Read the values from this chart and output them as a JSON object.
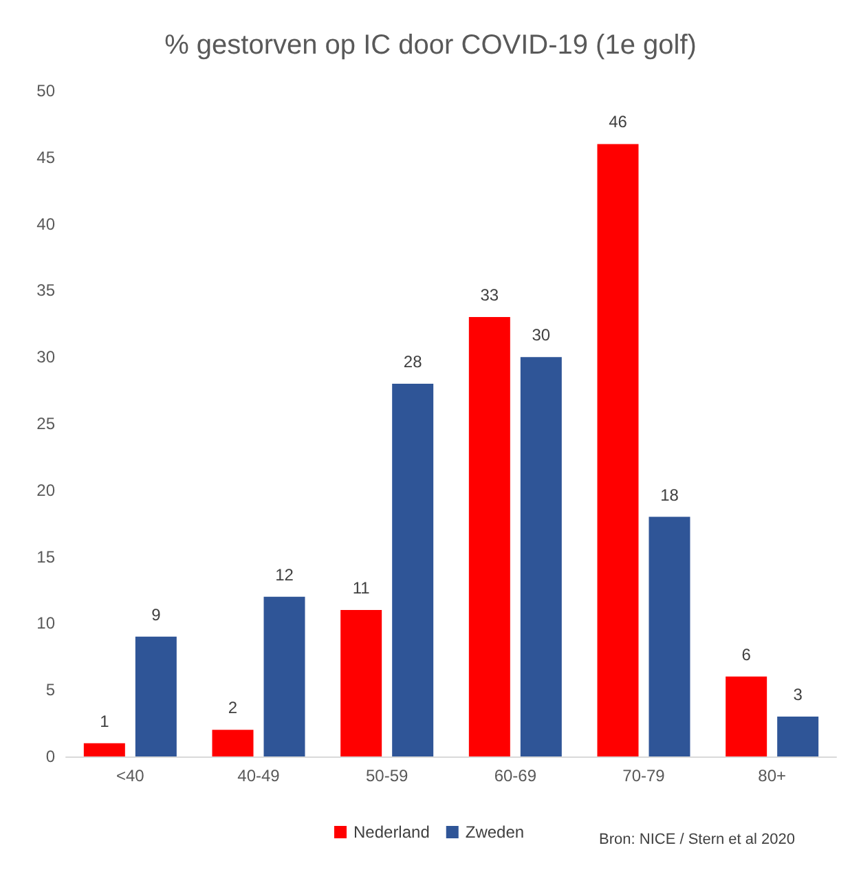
{
  "chart_data": {
    "type": "bar",
    "title": "% gestorven op IC door COVID-19 (1e golf)",
    "categories": [
      "<40",
      "40-49",
      "50-59",
      "60-69",
      "70-79",
      "80+"
    ],
    "series": [
      {
        "name": "Nederland",
        "color": "#ff0000",
        "values": [
          1,
          2,
          11,
          33,
          46,
          6
        ]
      },
      {
        "name": "Zweden",
        "color": "#2f5597",
        "values": [
          9,
          12,
          28,
          30,
          18,
          3
        ]
      }
    ],
    "ylim": [
      0,
      50
    ],
    "yticks": [
      0,
      5,
      10,
      15,
      20,
      25,
      30,
      35,
      40,
      45,
      50
    ],
    "grid": false,
    "legend": "bottom",
    "data_labels": true,
    "annotations": [
      "Bron: NICE / Stern et al 2020"
    ]
  }
}
